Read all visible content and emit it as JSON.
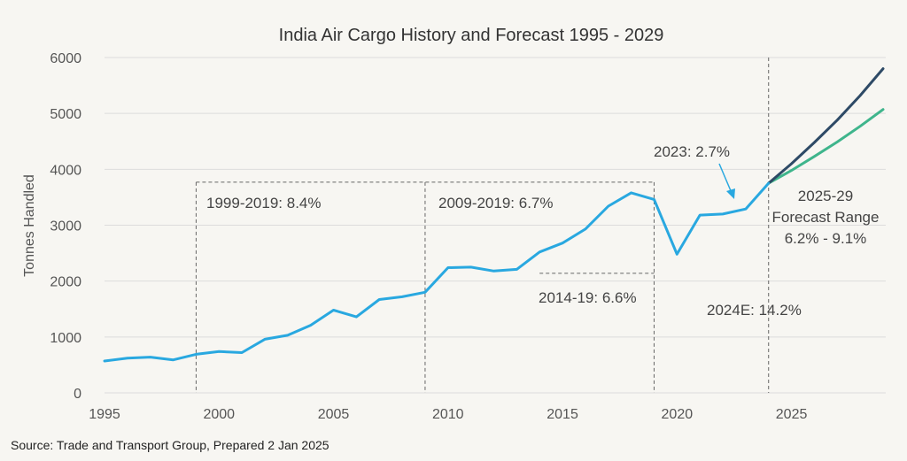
{
  "chart_data": {
    "type": "line",
    "title": "India Air Cargo History and Forecast 1995 - 2029",
    "xlabel": "",
    "ylabel": "Tonnes Handled",
    "xlim": [
      1995,
      2029.5
    ],
    "ylim": [
      0,
      6000
    ],
    "x_ticks": [
      1995,
      2000,
      2005,
      2010,
      2015,
      2020,
      2025
    ],
    "y_ticks": [
      0,
      1000,
      2000,
      3000,
      4000,
      5000,
      6000
    ],
    "grid": "horizontal",
    "series": [
      {
        "color": "#29a8e0",
        "x": [
          1995,
          1996,
          1997,
          1998,
          1999,
          2000,
          2001,
          2002,
          2003,
          2004,
          2005,
          2006,
          2007,
          2008,
          2009,
          2010,
          2011,
          2012,
          2013,
          2014,
          2015,
          2016,
          2017,
          2018,
          2019,
          2020,
          2021,
          2022,
          2023,
          2024
        ],
        "y": [
          570,
          620,
          640,
          590,
          690,
          740,
          720,
          960,
          1030,
          1210,
          1480,
          1360,
          1670,
          1720,
          1800,
          2240,
          2250,
          2180,
          2210,
          2520,
          2680,
          2930,
          3340,
          3580,
          3460,
          2480,
          3180,
          3200,
          3290,
          3750
        ]
      },
      {
        "color": "#2e4a66",
        "x": [
          2024,
          2025,
          2026,
          2027,
          2028,
          2029
        ],
        "y": [
          3750,
          4100,
          4480,
          4880,
          5320,
          5800
        ]
      },
      {
        "color": "#3fb58c",
        "x": [
          2024,
          2025,
          2026,
          2027,
          2028,
          2029
        ],
        "y": [
          3750,
          3980,
          4230,
          4490,
          4770,
          5070
        ]
      }
    ],
    "annotations": [
      "1999-2019: 8.4%",
      "2009-2019: 6.7%",
      "2014-19: 6.6%",
      "2023: 2.7%",
      "2024E: 14.2%",
      "2025-29",
      "Forecast Range",
      "6.2% - 9.1%"
    ],
    "source": "Source: Trade and Transport Group, Prepared 2 Jan 2025"
  }
}
